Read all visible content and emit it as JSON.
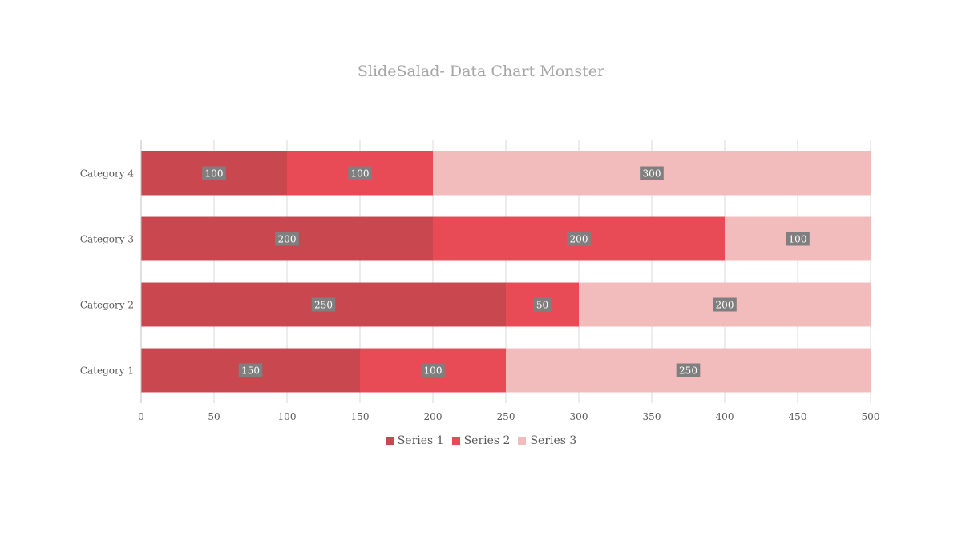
{
  "chart_data": {
    "type": "bar",
    "orientation": "horizontal",
    "stacked": true,
    "title": "SlideSalad- Data Chart Monster",
    "categories": [
      "Category 1",
      "Category 2",
      "Category 3",
      "Category 4"
    ],
    "series": [
      {
        "name": "Series 1",
        "values": [
          150,
          250,
          200,
          100
        ],
        "color": "#c9474f"
      },
      {
        "name": "Series 2",
        "values": [
          100,
          50,
          200,
          100
        ],
        "color": "#e84a56"
      },
      {
        "name": "Series 3",
        "values": [
          250,
          200,
          100,
          300
        ],
        "color": "#f2bcbc"
      }
    ],
    "xlim": [
      0,
      500
    ],
    "xticks": [
      0,
      50,
      100,
      150,
      200,
      250,
      300,
      350,
      400,
      450,
      500
    ],
    "grid": true,
    "legend_position": "bottom",
    "data_labels": true,
    "label_box_color": "#7f7f7f"
  }
}
